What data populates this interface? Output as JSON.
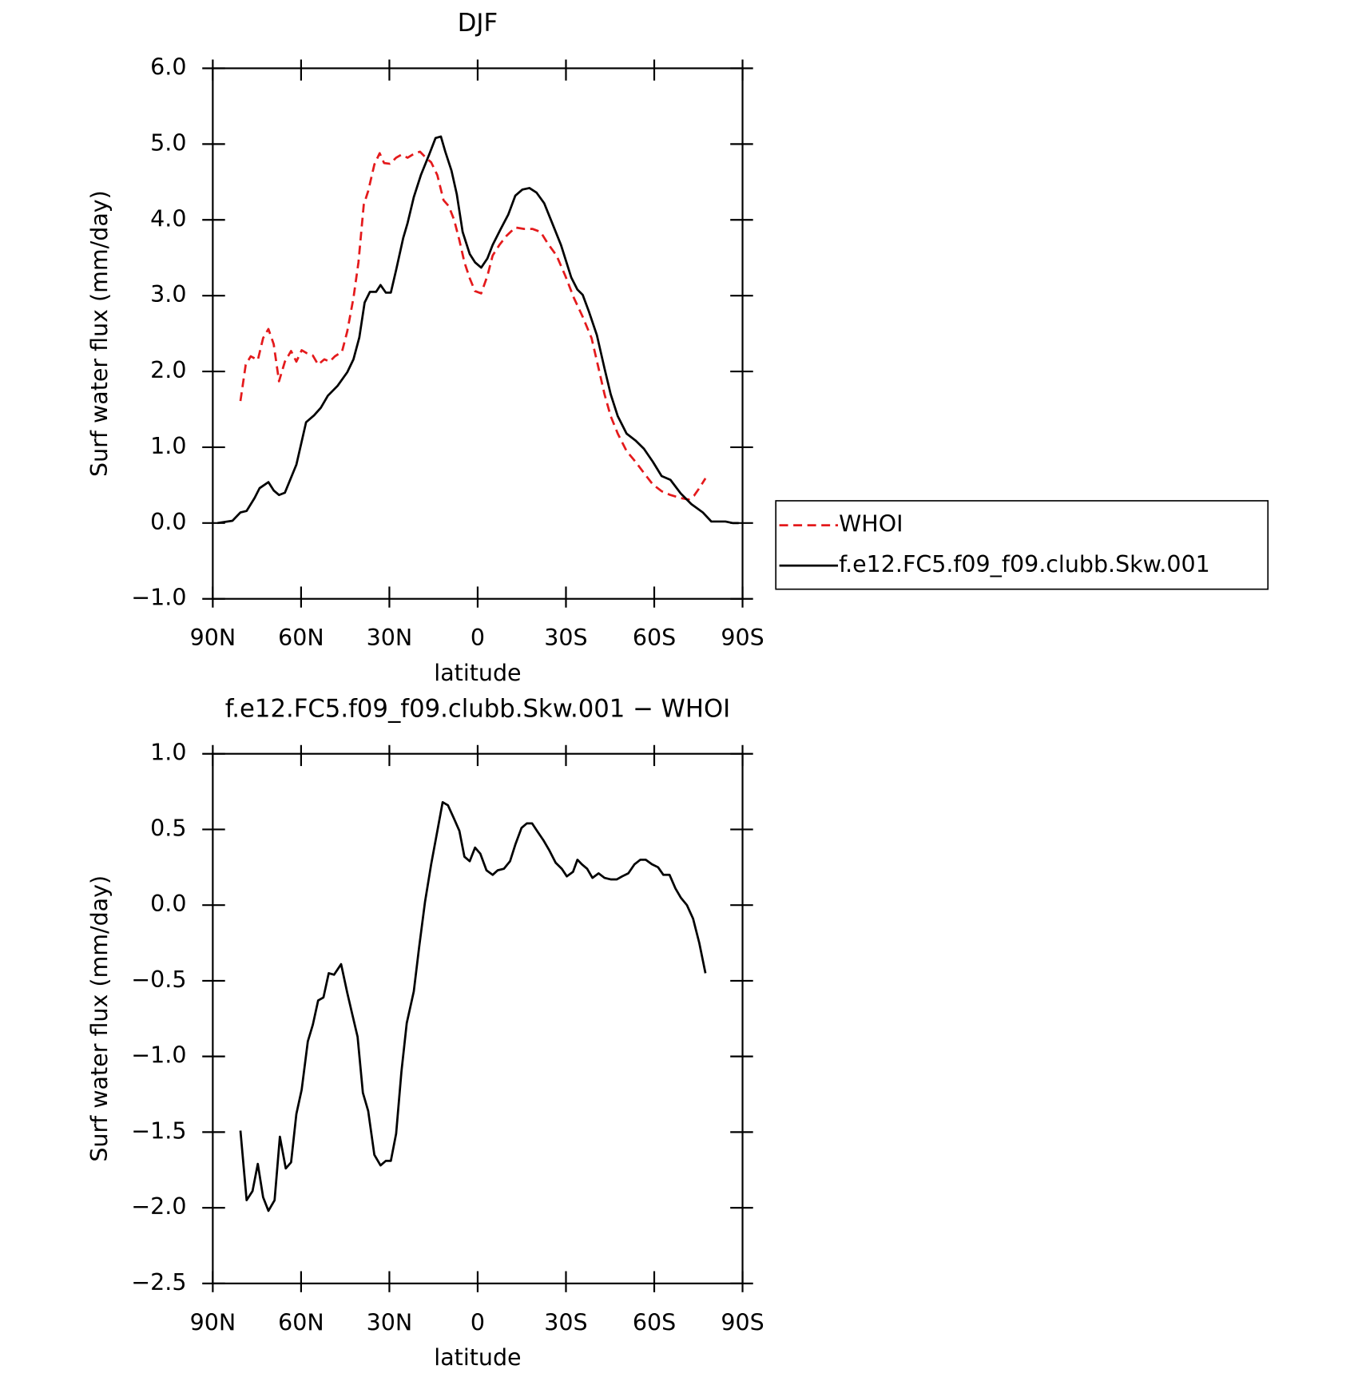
{
  "chart_data": [
    {
      "type": "line",
      "title": "DJF",
      "xlabel": "latitude",
      "ylabel": "Surf water flux (mm/day)",
      "xlim": [
        90,
        -90
      ],
      "xticks": [
        {
          "value": 90,
          "label": "90N"
        },
        {
          "value": 60,
          "label": "60N"
        },
        {
          "value": 30,
          "label": "30N"
        },
        0,
        {
          "value": -30,
          "label": "30S"
        },
        {
          "value": -60,
          "label": "60S"
        },
        {
          "value": -90,
          "label": "90S"
        }
      ],
      "ylim": [
        -1,
        6
      ],
      "yticks": [
        {
          "value": -1,
          "label": "−1.0"
        },
        {
          "value": 0,
          "label": "0.0"
        },
        {
          "value": 1,
          "label": "1.0"
        },
        {
          "value": 2,
          "label": "2.0"
        },
        {
          "value": 3,
          "label": "3.0"
        },
        {
          "value": 4,
          "label": "4.0"
        },
        {
          "value": 5,
          "label": "5.0"
        },
        {
          "value": 6,
          "label": "6.0"
        }
      ],
      "legend": "right",
      "series": [
        {
          "name": "WHOI",
          "color": "#e41a1c",
          "dash": "dashed",
          "x": [
            80.6,
            78.8,
            77.1,
            74.7,
            72.9,
            71.1,
            69.3,
            67.5,
            65.5,
            63.4,
            61.6,
            59.8,
            58.0,
            56.0,
            54.2,
            52.1,
            50.3,
            48.5,
            46.1,
            44.3,
            42.2,
            40.5,
            38.7,
            37.2,
            35.1,
            33.3,
            31.8,
            29.8,
            27.7,
            25.9,
            23.8,
            21.7,
            19.6,
            17.6,
            15.8,
            13.7,
            11.6,
            9.8,
            8.0,
            6.2,
            4.5,
            2.7,
            0.9,
            -1.2,
            -3.3,
            -5.1,
            -7.4,
            -9.8,
            -12.8,
            -15.8,
            -18.7,
            -21.4,
            -23.8,
            -26.8,
            -29.8,
            -32.7,
            -35.7,
            -38.7,
            -41.1,
            -43.1,
            -45.2,
            -47.6,
            -50.6,
            -53.6,
            -56.5,
            -59.5,
            -62.5,
            -65.5,
            -69.0,
            -71.7,
            -73.5,
            -75.3,
            -77.4
          ],
          "values": [
            1.61,
            2.09,
            2.2,
            2.15,
            2.44,
            2.56,
            2.36,
            1.87,
            2.13,
            2.27,
            2.13,
            2.28,
            2.24,
            2.21,
            2.09,
            2.16,
            2.13,
            2.2,
            2.26,
            2.53,
            2.97,
            3.44,
            4.2,
            4.38,
            4.73,
            4.88,
            4.75,
            4.74,
            4.82,
            4.86,
            4.82,
            4.87,
            4.9,
            4.82,
            4.76,
            4.59,
            4.26,
            4.18,
            4.0,
            3.73,
            3.44,
            3.23,
            3.06,
            3.03,
            3.26,
            3.53,
            3.67,
            3.79,
            3.9,
            3.88,
            3.88,
            3.84,
            3.69,
            3.53,
            3.26,
            2.97,
            2.72,
            2.44,
            2.04,
            1.7,
            1.41,
            1.18,
            0.95,
            0.81,
            0.66,
            0.51,
            0.42,
            0.37,
            0.33,
            0.31,
            0.36,
            0.46,
            0.59
          ]
        },
        {
          "name": "f.e12.FC5.f09_f09.clubb.Skw.001",
          "color": "#000000",
          "dash": "solid",
          "x": [
            88.4,
            83.3,
            80.6,
            78.5,
            75.8,
            74.1,
            71.1,
            69.3,
            67.5,
            65.5,
            61.6,
            58.3,
            55.6,
            53.3,
            50.9,
            47.6,
            44.3,
            42.2,
            40.2,
            38.4,
            36.6,
            34.5,
            33.0,
            31.2,
            29.5,
            27.7,
            25.3,
            23.8,
            21.7,
            19.3,
            16.4,
            14.3,
            12.5,
            11.0,
            8.9,
            7.1,
            5.1,
            2.7,
            0.9,
            -1.2,
            -3.3,
            -5.1,
            -7.7,
            -10.4,
            -12.8,
            -15.2,
            -17.6,
            -20.0,
            -22.6,
            -25.3,
            -28.3,
            -31.8,
            -33.9,
            -35.7,
            -37.8,
            -40.5,
            -43.1,
            -45.2,
            -47.6,
            -50.6,
            -53.6,
            -56.5,
            -59.5,
            -62.5,
            -65.5,
            -69.0,
            -72.6,
            -76.5,
            -79.4,
            -81.8,
            -84.2,
            -86.6,
            -88.7
          ],
          "values": [
            0.0,
            0.03,
            0.14,
            0.16,
            0.33,
            0.46,
            0.54,
            0.43,
            0.37,
            0.4,
            0.77,
            1.33,
            1.42,
            1.52,
            1.68,
            1.81,
            1.99,
            2.16,
            2.45,
            2.91,
            3.05,
            3.05,
            3.14,
            3.04,
            3.04,
            3.34,
            3.76,
            3.96,
            4.3,
            4.59,
            4.87,
            5.08,
            5.1,
            4.9,
            4.65,
            4.34,
            3.84,
            3.55,
            3.44,
            3.37,
            3.49,
            3.67,
            3.87,
            4.07,
            4.32,
            4.4,
            4.42,
            4.36,
            4.22,
            3.96,
            3.67,
            3.24,
            3.08,
            3.01,
            2.79,
            2.48,
            2.04,
            1.7,
            1.41,
            1.18,
            1.09,
            0.98,
            0.81,
            0.62,
            0.57,
            0.39,
            0.25,
            0.14,
            0.02,
            0.02,
            0.02,
            0.0,
            0.0
          ]
        }
      ]
    },
    {
      "type": "line",
      "title": "f.e12.FC5.f09_f09.clubb.Skw.001 − WHOI",
      "xlabel": "latitude",
      "ylabel": "Surf water flux (mm/day)",
      "xlim": [
        90,
        -90
      ],
      "xticks": [
        {
          "value": 90,
          "label": "90N"
        },
        {
          "value": 60,
          "label": "60N"
        },
        {
          "value": 30,
          "label": "30N"
        },
        0,
        {
          "value": -30,
          "label": "30S"
        },
        {
          "value": -60,
          "label": "60S"
        },
        {
          "value": -90,
          "label": "90S"
        }
      ],
      "ylim": [
        -2.5,
        1
      ],
      "yticks": [
        {
          "value": -2.5,
          "label": "−2.5"
        },
        {
          "value": -2,
          "label": "−2.0"
        },
        {
          "value": -1.5,
          "label": "−1.5"
        },
        {
          "value": -1,
          "label": "−1.0"
        },
        {
          "value": -0.5,
          "label": "−0.5"
        },
        {
          "value": 0,
          "label": "0.0"
        },
        0.5,
        {
          "value": 1,
          "label": "1.0"
        }
      ],
      "series": [
        {
          "color": "#000000",
          "dash": "solid",
          "x": [
            80.6,
            78.5,
            76.5,
            74.7,
            72.9,
            71.1,
            69.0,
            67.2,
            65.2,
            63.4,
            61.6,
            59.8,
            57.7,
            56.0,
            54.2,
            52.4,
            50.6,
            48.8,
            46.4,
            44.3,
            42.5,
            40.8,
            39.0,
            37.2,
            35.1,
            33.0,
            31.2,
            29.5,
            27.7,
            25.9,
            24.1,
            21.7,
            19.9,
            17.9,
            15.8,
            13.7,
            11.9,
            10.1,
            8.0,
            6.2,
            4.5,
            2.7,
            0.9,
            -0.9,
            -3.0,
            -5.1,
            -6.8,
            -8.9,
            -11.0,
            -12.8,
            -14.9,
            -16.7,
            -18.5,
            -20.2,
            -22.3,
            -24.4,
            -26.5,
            -28.6,
            -30.3,
            -32.4,
            -33.9,
            -35.4,
            -37.2,
            -39.0,
            -41.1,
            -43.1,
            -45.2,
            -47.3,
            -49.1,
            -51.2,
            -53.3,
            -55.3,
            -57.1,
            -59.2,
            -61.3,
            -63.1,
            -65.2,
            -67.2,
            -69.0,
            -71.1,
            -73.2,
            -75.3,
            -77.4
          ],
          "values": [
            -1.49,
            -1.95,
            -1.89,
            -1.71,
            -1.93,
            -2.02,
            -1.95,
            -1.53,
            -1.74,
            -1.7,
            -1.38,
            -1.22,
            -0.9,
            -0.79,
            -0.63,
            -0.61,
            -0.45,
            -0.46,
            -0.39,
            -0.58,
            -0.73,
            -0.87,
            -1.24,
            -1.36,
            -1.65,
            -1.72,
            -1.69,
            -1.69,
            -1.51,
            -1.1,
            -0.78,
            -0.57,
            -0.28,
            0.02,
            0.27,
            0.49,
            0.68,
            0.66,
            0.57,
            0.49,
            0.32,
            0.29,
            0.38,
            0.34,
            0.23,
            0.2,
            0.23,
            0.24,
            0.29,
            0.4,
            0.51,
            0.54,
            0.54,
            0.49,
            0.43,
            0.36,
            0.28,
            0.24,
            0.19,
            0.22,
            0.3,
            0.27,
            0.24,
            0.18,
            0.21,
            0.18,
            0.17,
            0.17,
            0.19,
            0.21,
            0.27,
            0.3,
            0.3,
            0.27,
            0.25,
            0.2,
            0.2,
            0.11,
            0.05,
            0.0,
            -0.09,
            -0.25,
            -0.45
          ]
        }
      ]
    }
  ]
}
